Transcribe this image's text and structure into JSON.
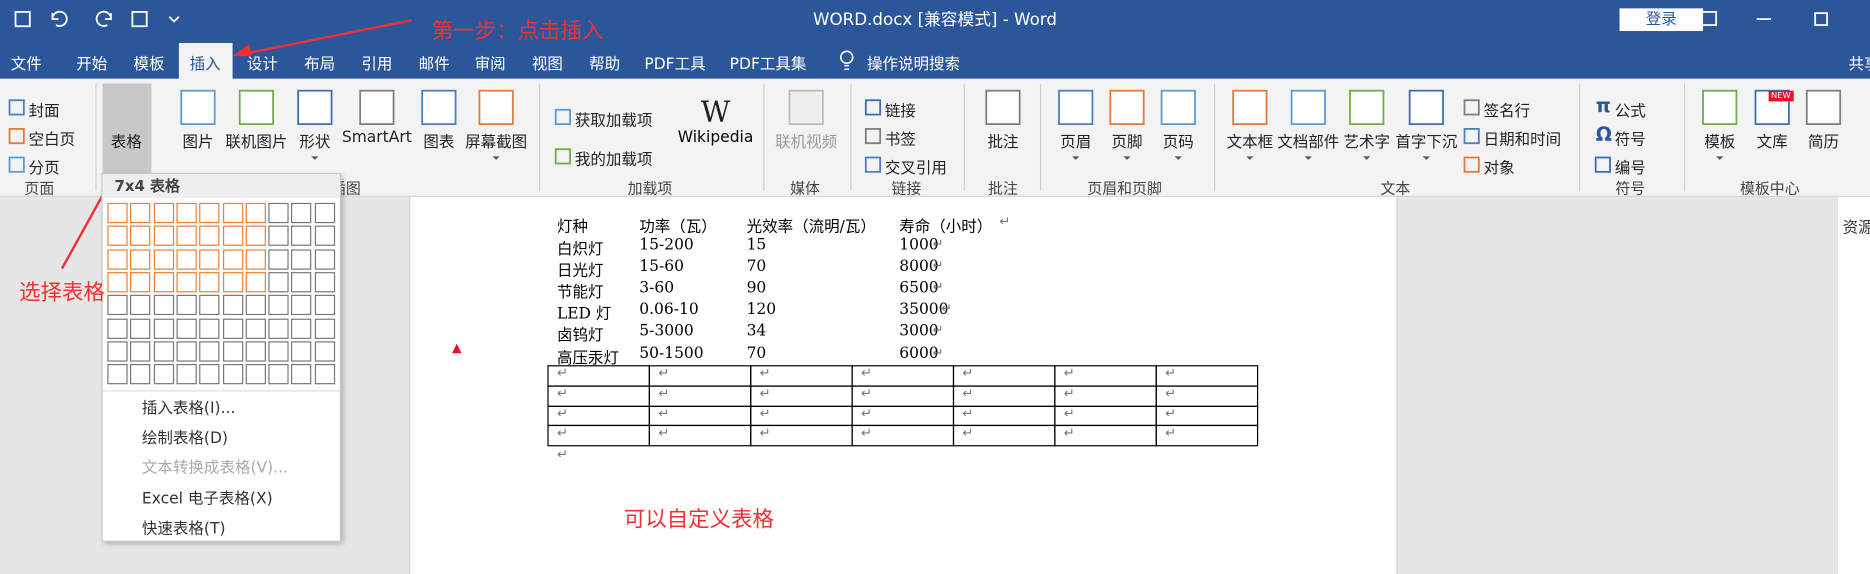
{
  "title_bar": {
    "title": "WORD.docx [兼容模式]  -  Word",
    "login": "登录"
  },
  "tabs": [
    "文件",
    "开始",
    "模板",
    "插入",
    "设计",
    "布局",
    "引用",
    "邮件",
    "审阅",
    "视图",
    "帮助",
    "PDF工具",
    "PDF工具集",
    "操作说明搜索"
  ],
  "active_tab": 3,
  "share": "共享",
  "ribbon": {
    "groups": [
      {
        "name": "页面",
        "buttons": [
          "封面",
          "空白页",
          "分页"
        ]
      },
      {
        "name": "插图",
        "buttons": [
          "表格",
          "图片",
          "联机图片",
          "形状",
          "SmartArt",
          "图表",
          "屏幕截图"
        ]
      },
      {
        "name": "加载项",
        "buttons": [
          "获取加载项",
          "我的加载项",
          "Wikipedia"
        ]
      },
      {
        "name": "媒体",
        "buttons": [
          "联机视频"
        ]
      },
      {
        "name": "链接",
        "buttons": [
          "链接",
          "书签",
          "交叉引用"
        ]
      },
      {
        "name": "批注",
        "buttons": [
          "批注"
        ]
      },
      {
        "name": "页眉和页脚",
        "buttons": [
          "页眉",
          "页脚",
          "页码"
        ]
      },
      {
        "name": "文本",
        "buttons": [
          "文本框",
          "文档部件",
          "艺术字",
          "首字下沉",
          "签名行",
          "日期和时间",
          "对象"
        ]
      },
      {
        "name": "符号",
        "buttons": [
          "公式",
          "符号",
          "编号"
        ]
      },
      {
        "name": "模板中心",
        "buttons": [
          "模板",
          "文库",
          "简历"
        ]
      }
    ],
    "wikipedia_logo": "W",
    "symbol_glyphs": [
      "π",
      "Ω"
    ],
    "badge": "NEW"
  },
  "table_menu": {
    "header": "7x4 表格",
    "grid_cols": 10,
    "grid_rows": 8,
    "selected_cols": 7,
    "selected_rows": 4,
    "items": [
      "插入表格(I)...",
      "绘制表格(D)",
      "文本转换成表格(V)...",
      "Excel 电子表格(X)",
      "快速表格(T)"
    ]
  },
  "document": {
    "header": [
      "灯种",
      "功率（瓦）",
      "光效率（流明/瓦）",
      "寿命（小时）"
    ],
    "rows": [
      [
        "白炽灯",
        "15-200",
        "15",
        "1000"
      ],
      [
        "日光灯",
        "15-60",
        "70",
        "8000"
      ],
      [
        "节能灯",
        "3-60",
        "90",
        "6500"
      ],
      [
        "LED 灯",
        "0.06-10",
        "120",
        "35000"
      ],
      [
        "卤钨灯",
        "5-3000",
        "34",
        "3000"
      ],
      [
        "高压汞灯",
        "50-1500",
        "70",
        "6000"
      ]
    ],
    "pilcrow": "↵",
    "new_table": {
      "rows": 4,
      "cols": 7
    }
  },
  "side_panel": "资源",
  "annotations": [
    "第一步：点击插入",
    "选择表格",
    "可以自定义表格"
  ]
}
